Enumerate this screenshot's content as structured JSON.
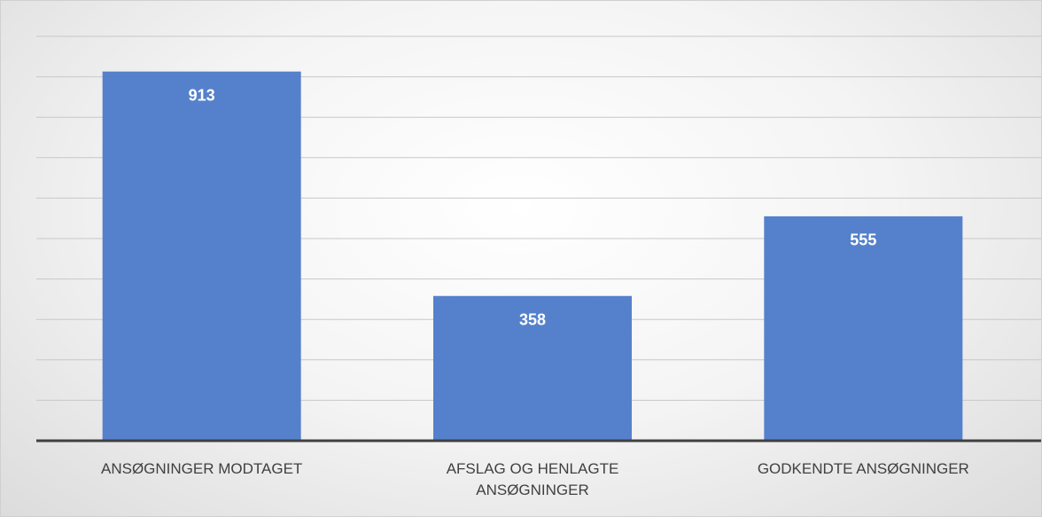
{
  "chart_data": {
    "type": "bar",
    "categories": [
      "ANSØGNINGER MODTAGET",
      "AFSLAG OG HENLAGTE ANSØGNINGER",
      "GODKENDTE ANSØGNINGER"
    ],
    "values": [
      913,
      358,
      555
    ],
    "color": "#5581cc",
    "ylim": [
      0,
      1000
    ],
    "yticks": [
      0,
      100,
      200,
      300,
      400,
      500,
      600,
      700,
      800,
      900,
      1000
    ],
    "grid": true
  }
}
